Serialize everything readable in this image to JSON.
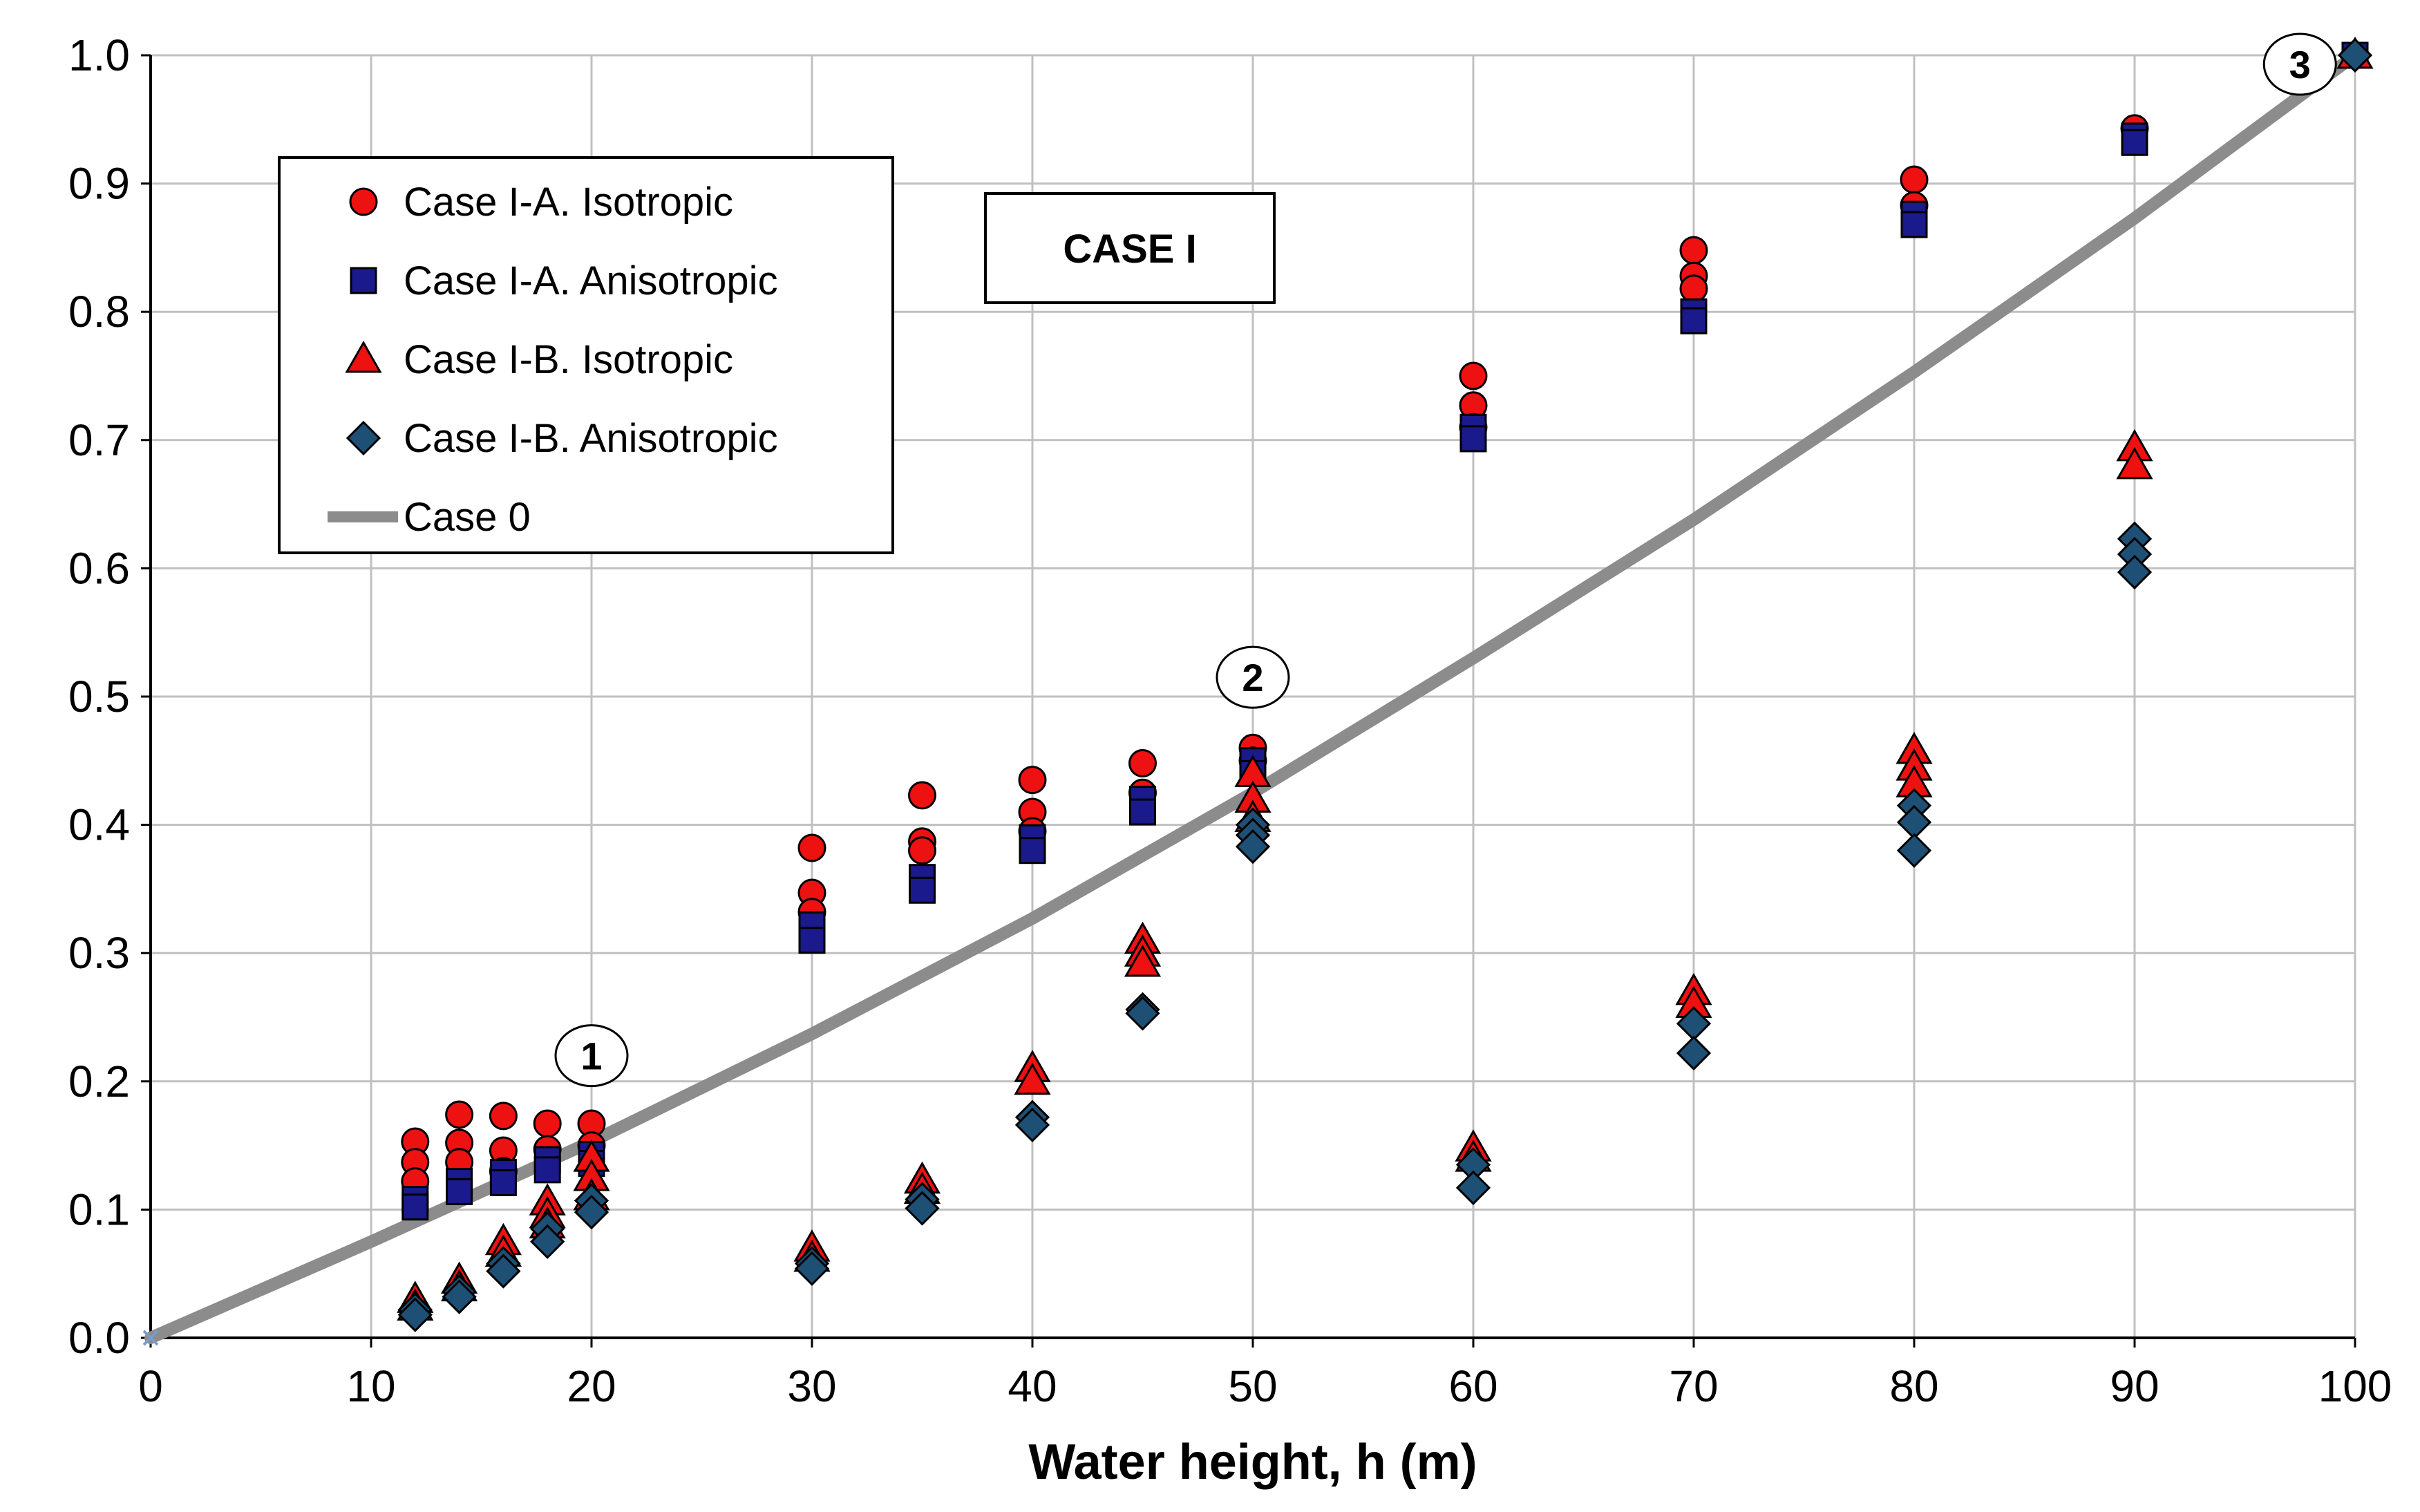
{
  "chart_data": {
    "type": "scatter",
    "title": "",
    "xlabel": "Water height, h (m)",
    "ylabel": "",
    "xlim": [
      0,
      100
    ],
    "ylim": [
      0.0,
      1.0
    ],
    "xticks": [
      "0",
      "10",
      "20",
      "30",
      "40",
      "50",
      "60",
      "70",
      "80",
      "90",
      "100"
    ],
    "yticks": [
      "0.0",
      "0.1",
      "0.2",
      "0.3",
      "0.4",
      "0.5",
      "0.6",
      "0.7",
      "0.8",
      "0.9",
      "1.0"
    ],
    "grid": true,
    "legend_position": "top-left",
    "box_label": "CASE I",
    "annotations": [
      {
        "label": "1",
        "x": 20,
        "y": 0.22
      },
      {
        "label": "2",
        "x": 50,
        "y": 0.515
      },
      {
        "label": "3",
        "x": 97.5,
        "y": 0.993
      }
    ],
    "series": [
      {
        "name": "Case I-A. Isotropic",
        "marker": "circle",
        "color": "#ee1111",
        "points": [
          [
            12,
            0.153
          ],
          [
            12,
            0.137
          ],
          [
            12,
            0.122
          ],
          [
            14,
            0.174
          ],
          [
            14,
            0.152
          ],
          [
            14,
            0.137
          ],
          [
            16,
            0.173
          ],
          [
            16,
            0.146
          ],
          [
            16,
            0.13
          ],
          [
            18,
            0.167
          ],
          [
            18,
            0.147
          ],
          [
            20,
            0.167
          ],
          [
            20,
            0.15
          ],
          [
            30,
            0.382
          ],
          [
            30,
            0.347
          ],
          [
            30,
            0.332
          ],
          [
            35,
            0.423
          ],
          [
            35,
            0.387
          ],
          [
            35,
            0.38
          ],
          [
            40,
            0.435
          ],
          [
            40,
            0.41
          ],
          [
            40,
            0.395
          ],
          [
            45,
            0.448
          ],
          [
            45,
            0.425
          ],
          [
            50,
            0.46
          ],
          [
            50,
            0.45
          ],
          [
            60,
            0.75
          ],
          [
            60,
            0.727
          ],
          [
            60,
            0.71
          ],
          [
            70,
            0.848
          ],
          [
            70,
            0.828
          ],
          [
            70,
            0.818
          ],
          [
            80,
            0.903
          ],
          [
            80,
            0.883
          ],
          [
            90,
            0.943
          ],
          [
            100,
            1.0
          ]
        ]
      },
      {
        "name": "Case I-A. Anisotropic",
        "marker": "square",
        "color": "#1a1a8c",
        "points": [
          [
            12,
            0.108
          ],
          [
            12,
            0.102
          ],
          [
            14,
            0.122
          ],
          [
            14,
            0.114
          ],
          [
            16,
            0.129
          ],
          [
            16,
            0.121
          ],
          [
            18,
            0.139
          ],
          [
            18,
            0.131
          ],
          [
            20,
            0.143
          ],
          [
            20,
            0.136
          ],
          [
            30,
            0.322
          ],
          [
            30,
            0.31
          ],
          [
            35,
            0.359
          ],
          [
            35,
            0.349
          ],
          [
            40,
            0.39
          ],
          [
            40,
            0.38
          ],
          [
            45,
            0.42
          ],
          [
            45,
            0.41
          ],
          [
            50,
            0.45
          ],
          [
            50,
            0.44
          ],
          [
            60,
            0.71
          ],
          [
            60,
            0.701
          ],
          [
            70,
            0.8
          ],
          [
            70,
            0.793
          ],
          [
            80,
            0.876
          ],
          [
            80,
            0.868
          ],
          [
            90,
            0.937
          ],
          [
            90,
            0.932
          ],
          [
            100,
            1.0
          ]
        ]
      },
      {
        "name": "Case I-B. Isotropic",
        "marker": "triangle",
        "color": "#ee1111",
        "points": [
          [
            12,
            0.03
          ],
          [
            12,
            0.024
          ],
          [
            14,
            0.045
          ],
          [
            14,
            0.039
          ],
          [
            16,
            0.075
          ],
          [
            16,
            0.066
          ],
          [
            18,
            0.106
          ],
          [
            18,
            0.096
          ],
          [
            18,
            0.088
          ],
          [
            20,
            0.14
          ],
          [
            20,
            0.125
          ],
          [
            20,
            0.11
          ],
          [
            30,
            0.07
          ],
          [
            30,
            0.062
          ],
          [
            35,
            0.123
          ],
          [
            35,
            0.115
          ],
          [
            40,
            0.21
          ],
          [
            40,
            0.2
          ],
          [
            45,
            0.31
          ],
          [
            45,
            0.3
          ],
          [
            45,
            0.292
          ],
          [
            50,
            0.44
          ],
          [
            50,
            0.42
          ],
          [
            50,
            0.405
          ],
          [
            60,
            0.148
          ],
          [
            60,
            0.14
          ],
          [
            70,
            0.27
          ],
          [
            70,
            0.26
          ],
          [
            80,
            0.458
          ],
          [
            80,
            0.445
          ],
          [
            80,
            0.432
          ],
          [
            90,
            0.694
          ],
          [
            90,
            0.68
          ],
          [
            100,
            1.0
          ]
        ]
      },
      {
        "name": "Case I-B. Anisotropic",
        "marker": "diamond",
        "color": "#1e4f75",
        "points": [
          [
            12,
            0.022
          ],
          [
            12,
            0.018
          ],
          [
            14,
            0.036
          ],
          [
            14,
            0.032
          ],
          [
            16,
            0.058
          ],
          [
            16,
            0.052
          ],
          [
            18,
            0.085
          ],
          [
            18,
            0.075
          ],
          [
            20,
            0.107
          ],
          [
            20,
            0.098
          ],
          [
            30,
            0.058
          ],
          [
            30,
            0.054
          ],
          [
            35,
            0.108
          ],
          [
            35,
            0.101
          ],
          [
            40,
            0.172
          ],
          [
            40,
            0.166
          ],
          [
            45,
            0.256
          ],
          [
            45,
            0.253
          ],
          [
            50,
            0.4
          ],
          [
            50,
            0.392
          ],
          [
            50,
            0.383
          ],
          [
            60,
            0.135
          ],
          [
            60,
            0.117
          ],
          [
            70,
            0.245
          ],
          [
            70,
            0.222
          ],
          [
            80,
            0.415
          ],
          [
            80,
            0.402
          ],
          [
            80,
            0.38
          ],
          [
            90,
            0.623
          ],
          [
            90,
            0.611
          ],
          [
            90,
            0.597
          ],
          [
            100,
            1.0
          ]
        ]
      },
      {
        "name": "Case 0",
        "marker": "line",
        "color": "#8c8c8c",
        "points": [
          [
            0,
            0.0
          ],
          [
            10,
            0.075
          ],
          [
            20,
            0.153
          ],
          [
            30,
            0.237
          ],
          [
            40,
            0.327
          ],
          [
            50,
            0.425
          ],
          [
            60,
            0.53
          ],
          [
            70,
            0.638
          ],
          [
            80,
            0.753
          ],
          [
            90,
            0.873
          ],
          [
            100,
            1.0
          ]
        ]
      }
    ]
  }
}
